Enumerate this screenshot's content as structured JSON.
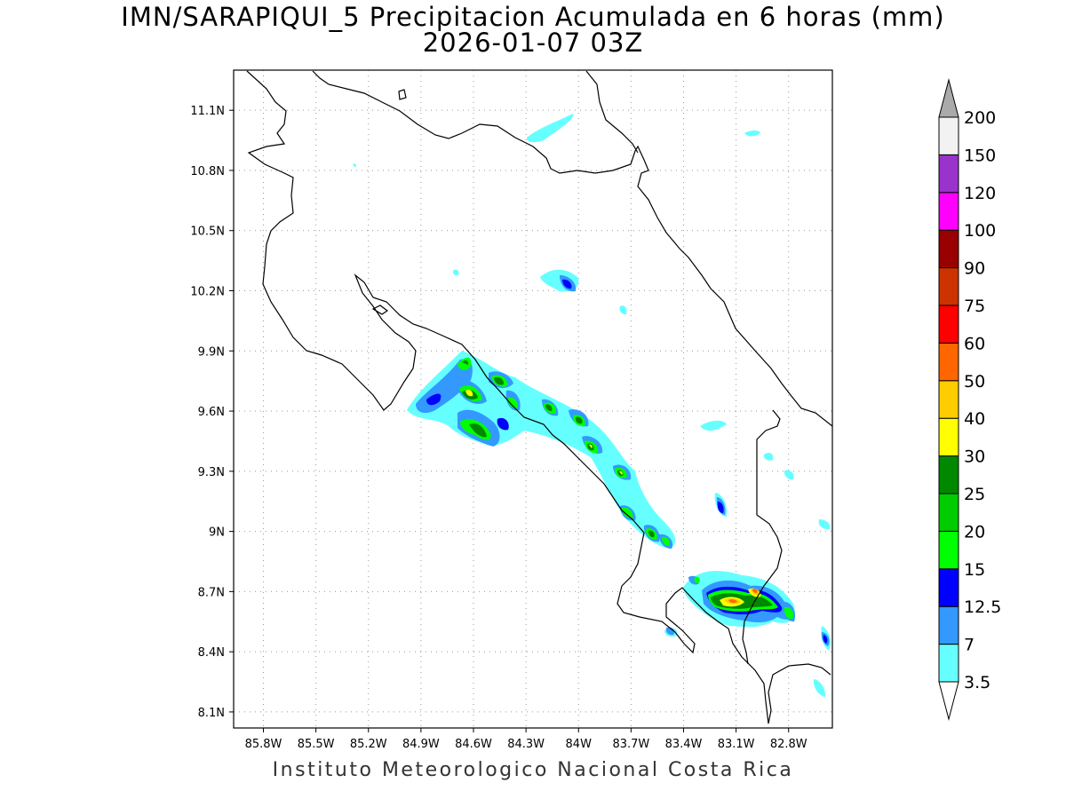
{
  "map": {
    "title_line1": "IMN/SARAPIQUI_5 Precipitacion Acumulada en 6 horas (mm)",
    "title_line2": "2026-01-07 03Z",
    "footer": "Instituto Meteorologico Nacional Costa Rica",
    "region": "Costa Rica",
    "variable": "accumulated precipitation, 6 hours",
    "units": "mm",
    "projection": "lat-lon",
    "extent": {
      "lon_min": -85.97,
      "lon_max": -82.55,
      "lat_min": 8.02,
      "lat_max": 11.3
    },
    "gridlines": "dotted",
    "lon_ticks": [
      {
        "value": -85.8,
        "label": "85.8W"
      },
      {
        "value": -85.5,
        "label": "85.5W"
      },
      {
        "value": -85.2,
        "label": "85.2W"
      },
      {
        "value": -84.9,
        "label": "84.9W"
      },
      {
        "value": -84.6,
        "label": "84.6W"
      },
      {
        "value": -84.3,
        "label": "84.3W"
      },
      {
        "value": -84.0,
        "label": "84W"
      },
      {
        "value": -83.7,
        "label": "83.7W"
      },
      {
        "value": -83.4,
        "label": "83.4W"
      },
      {
        "value": -83.1,
        "label": "83.1W"
      },
      {
        "value": -82.8,
        "label": "82.8W"
      }
    ],
    "lat_ticks": [
      {
        "value": 11.1,
        "label": "11.1N"
      },
      {
        "value": 10.8,
        "label": "10.8N"
      },
      {
        "value": 10.5,
        "label": "10.5N"
      },
      {
        "value": 10.2,
        "label": "10.2N"
      },
      {
        "value": 9.9,
        "label": "9.9N"
      },
      {
        "value": 9.6,
        "label": "9.6N"
      },
      {
        "value": 9.3,
        "label": "9.3N"
      },
      {
        "value": 9.0,
        "label": "9N"
      },
      {
        "value": 8.7,
        "label": "8.7N"
      },
      {
        "value": 8.4,
        "label": "8.4N"
      },
      {
        "value": 8.1,
        "label": "8.1N"
      }
    ],
    "colorbar": {
      "placement": "right",
      "extend": "both",
      "bins": [
        {
          "label": "3.5",
          "color": "#ffffff"
        },
        {
          "label": "7",
          "color": "#66ffff"
        },
        {
          "label": "12.5",
          "color": "#3399ff"
        },
        {
          "label": "15",
          "color": "#0000ff"
        },
        {
          "label": "20",
          "color": "#00ff00"
        },
        {
          "label": "25",
          "color": "#00cc00"
        },
        {
          "label": "30",
          "color": "#008800"
        },
        {
          "label": "40",
          "color": "#ffff00"
        },
        {
          "label": "50",
          "color": "#ffcc00"
        },
        {
          "label": "60",
          "color": "#ff6600"
        },
        {
          "label": "75",
          "color": "#ff0000"
        },
        {
          "label": "90",
          "color": "#cc3300"
        },
        {
          "label": "100",
          "color": "#990000"
        },
        {
          "label": "120",
          "color": "#ff00ff"
        },
        {
          "label": "150",
          "color": "#9933cc"
        },
        {
          "label": "200",
          "color": "#f2f2f2"
        }
      ],
      "above_max_color": "#aaaaaa"
    },
    "precip_cells": [
      {
        "lon": -84.63,
        "lat": 9.85,
        "level": 5
      },
      {
        "lon": -84.6,
        "lat": 9.7,
        "level": 7
      },
      {
        "lon": -84.53,
        "lat": 9.5,
        "level": 6
      },
      {
        "lon": -84.43,
        "lat": 9.75,
        "level": 5
      },
      {
        "lon": -84.37,
        "lat": 9.63,
        "level": 6
      },
      {
        "lon": -84.15,
        "lat": 9.62,
        "level": 7
      },
      {
        "lon": -83.97,
        "lat": 9.55,
        "level": 6
      },
      {
        "lon": -83.9,
        "lat": 9.42,
        "level": 7
      },
      {
        "lon": -83.72,
        "lat": 9.28,
        "level": 6
      },
      {
        "lon": -83.68,
        "lat": 9.08,
        "level": 6
      },
      {
        "lon": -83.55,
        "lat": 9.0,
        "level": 6
      },
      {
        "lon": -83.47,
        "lat": 8.93,
        "level": 4
      },
      {
        "lon": -83.1,
        "lat": 9.12,
        "level": 4
      },
      {
        "lon": -83.0,
        "lat": 8.64,
        "level": 9
      },
      {
        "lon": -82.88,
        "lat": 8.69,
        "level": 10
      },
      {
        "lon": -82.75,
        "lat": 8.57,
        "level": 6
      },
      {
        "lon": -84.0,
        "lat": 10.25,
        "level": 3
      },
      {
        "lon": -84.85,
        "lat": 9.65,
        "level": 2
      }
    ]
  }
}
